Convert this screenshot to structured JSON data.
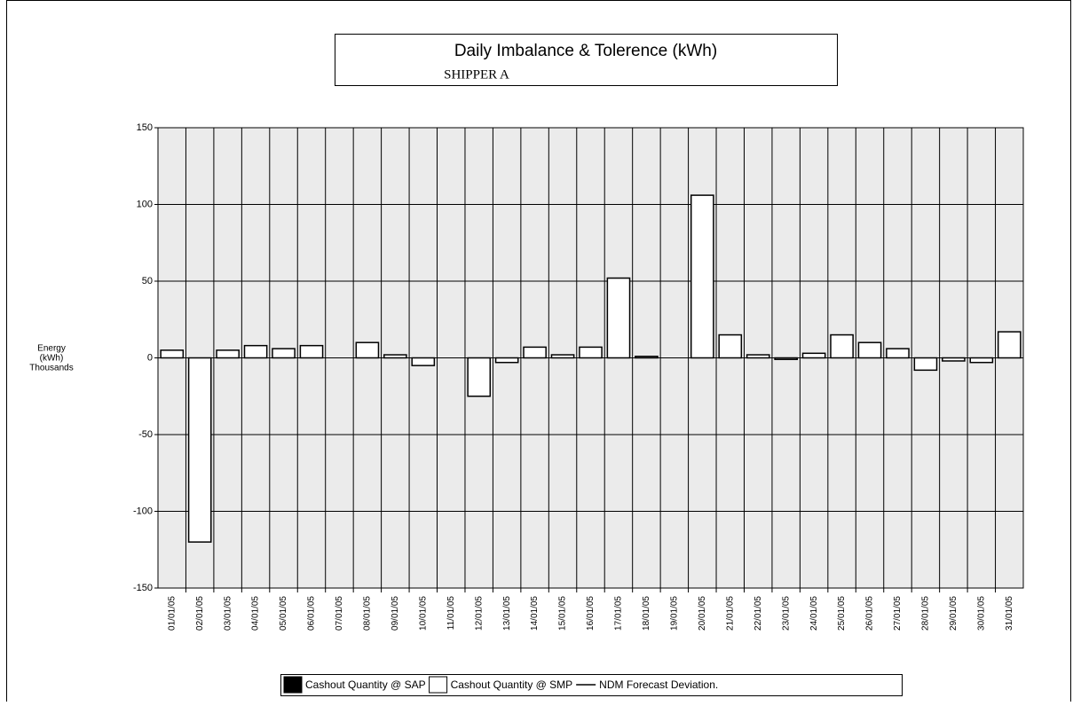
{
  "chart_data": {
    "type": "bar",
    "title": "Daily Imbalance & Tolerence (kWh)",
    "subtitle": "SHIPPER A",
    "y_label": [
      "Energy",
      "(kWh)",
      "Thousands"
    ],
    "categories": [
      "01/01/05",
      "02/01/05",
      "03/01/05",
      "04/01/05",
      "05/01/05",
      "06/01/05",
      "07/01/05",
      "08/01/05",
      "09/01/05",
      "10/01/05",
      "11/01/05",
      "12/01/05",
      "13/01/05",
      "14/01/05",
      "15/01/05",
      "16/01/05",
      "17/01/05",
      "18/01/05",
      "19/01/05",
      "20/01/05",
      "21/01/05",
      "22/01/05",
      "23/01/05",
      "24/01/05",
      "25/01/05",
      "26/01/05",
      "27/01/05",
      "28/01/05",
      "29/01/05",
      "30/01/05",
      "31/01/05"
    ],
    "series": [
      {
        "name": "Cashout Quantity @ SAP",
        "color": "#000000",
        "values": [
          null,
          null,
          null,
          null,
          null,
          null,
          null,
          null,
          null,
          null,
          null,
          null,
          null,
          null,
          null,
          null,
          null,
          null,
          null,
          null,
          null,
          null,
          null,
          null,
          null,
          null,
          null,
          null,
          null,
          null,
          null
        ]
      },
      {
        "name": "Cashout Quantity @ SMP",
        "color": "#ffffff",
        "values": [
          5,
          -120,
          5,
          8,
          6,
          8,
          0,
          10,
          2,
          -5,
          0,
          -25,
          -3,
          7,
          2,
          7,
          52,
          1,
          0,
          106,
          15,
          2,
          -1,
          3,
          15,
          10,
          6,
          -8,
          -2,
          -3,
          17
        ]
      },
      {
        "name": "NDM Forecast Deviation.",
        "color": "#000000",
        "type": "line",
        "values": [
          null,
          null,
          null,
          null,
          null,
          null,
          null,
          null,
          null,
          null,
          null,
          null,
          null,
          null,
          null,
          null,
          null,
          null,
          null,
          null,
          null,
          null,
          null,
          null,
          null,
          null,
          null,
          null,
          null,
          null,
          null
        ]
      }
    ],
    "ylim": [
      -150,
      150
    ],
    "yticks": [
      150,
      100,
      50,
      0,
      -50,
      -100,
      -150
    ],
    "grid": true,
    "plot_background": "#ebebeb"
  }
}
